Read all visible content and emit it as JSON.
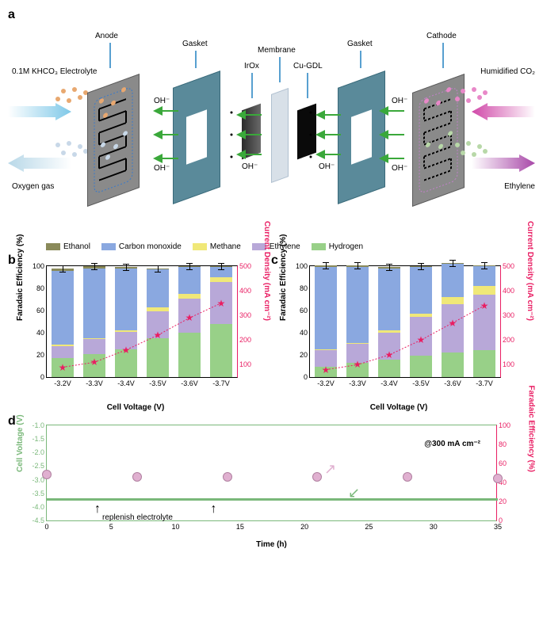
{
  "panelA": {
    "labels": {
      "anode": "Anode",
      "gasket": "Gasket",
      "membrane": "Membrane",
      "irox": "IrOx",
      "cugdl": "Cu-GDL",
      "cathode": "Cathode",
      "electrolyte": "0.1M KHCO₃\nElectrolyte",
      "oxygen": "Oxygen gas",
      "co2": "Humidified CO₂",
      "ethylene": "Ethylene",
      "oh": "OH⁻"
    },
    "colors": {
      "plate": "#8a8a8a",
      "plate_edge": "#5a5a5a",
      "gasket": "#5a8a9a",
      "membrane": "#d8e0e8",
      "irox": "#4a4a4a",
      "cugdl": "#0a0a0a",
      "arrow_in_left": "#7ec8e8",
      "arrow_out_left": "#b8d8e8",
      "arrow_in_right": "#d048a8",
      "arrow_out_right": "#a848a8",
      "oh_arrow": "#3aa83a",
      "pointer": "#2080c0",
      "dots_orange": "#e8a870",
      "dots_lightblue": "#c8d8e8",
      "dots_pink": "#e888c8",
      "dots_green": "#b8d8a8"
    }
  },
  "legend": {
    "items": [
      {
        "label": "Ethanol",
        "color": "#8a8a5a"
      },
      {
        "label": "Carbon monoxide",
        "color": "#8aa8e0"
      },
      {
        "label": "Methane",
        "color": "#f0e878"
      },
      {
        "label": "Ethylene",
        "color": "#b8a8d8"
      },
      {
        "label": "Hydrogen",
        "color": "#98d088"
      }
    ]
  },
  "chartB": {
    "ylabel_left": "Faradaic Efficiency (%)",
    "ylabel_right": "Current Density (mA cm⁻²)",
    "xlabel": "Cell Voltage (V)",
    "ylim_left": [
      0,
      100
    ],
    "ylim_right": [
      50,
      500
    ],
    "yticks_left": [
      0,
      20,
      40,
      60,
      80,
      100
    ],
    "yticks_right": [
      100,
      200,
      300,
      400,
      500
    ],
    "categories": [
      "-3.2V",
      "-3.3V",
      "-3.4V",
      "-3.5V",
      "-3.6V",
      "-3.7V"
    ],
    "stacks": [
      {
        "hydrogen": 17,
        "ethylene": 11,
        "methane": 1,
        "co": 67,
        "ethanol": 2
      },
      {
        "hydrogen": 21,
        "ethylene": 13,
        "methane": 1,
        "co": 63,
        "ethanol": 2
      },
      {
        "hydrogen": 25,
        "ethylene": 16,
        "methane": 1,
        "co": 56,
        "ethanol": 1
      },
      {
        "hydrogen": 35,
        "ethylene": 24,
        "methane": 4,
        "co": 34,
        "ethanol": 1
      },
      {
        "hydrogen": 40,
        "ethylene": 31,
        "methane": 4,
        "co": 24,
        "ethanol": 1
      },
      {
        "hydrogen": 48,
        "ethylene": 38,
        "methane": 4,
        "co": 9,
        "ethanol": 1
      }
    ],
    "current_density": [
      90,
      110,
      160,
      220,
      290,
      350
    ],
    "line_color": "#e91e63"
  },
  "chartC": {
    "ylabel_left": "Faradaic Efficiency (%)",
    "ylabel_right": "Current Density (mA cm⁻²)",
    "xlabel": "Cell Voltage (V)",
    "ylim_left": [
      0,
      100
    ],
    "ylim_right": [
      50,
      500
    ],
    "yticks_left": [
      0,
      20,
      40,
      60,
      80,
      100
    ],
    "yticks_right": [
      100,
      200,
      300,
      400,
      500
    ],
    "categories": [
      "-3.2V",
      "-3.3V",
      "-3.4V",
      "-3.5V",
      "-3.6V",
      "-3.7V"
    ],
    "stacks": [
      {
        "hydrogen": 9,
        "ethylene": 15,
        "methane": 1,
        "co": 74,
        "ethanol": 2
      },
      {
        "hydrogen": 13,
        "ethylene": 17,
        "methane": 1,
        "co": 68,
        "ethanol": 2
      },
      {
        "hydrogen": 16,
        "ethylene": 24,
        "methane": 2,
        "co": 56,
        "ethanol": 1
      },
      {
        "hydrogen": 19,
        "ethylene": 35,
        "methane": 3,
        "co": 42,
        "ethanol": 1
      },
      {
        "hydrogen": 22,
        "ethylene": 44,
        "methane": 6,
        "co": 30,
        "ethanol": 1
      },
      {
        "hydrogen": 24,
        "ethylene": 50,
        "methane": 8,
        "co": 18,
        "ethanol": 1
      }
    ],
    "current_density": [
      80,
      100,
      140,
      200,
      270,
      340
    ],
    "line_color": "#e91e63"
  },
  "chartD": {
    "ylabel_left": "Cell Voltage (V)",
    "ylabel_right": "Faradaic Efficiency (%)",
    "xlabel": "Time (h)",
    "ylim_left": [
      -4.5,
      -1.0
    ],
    "ylim_right": [
      0,
      100
    ],
    "yticks_left": [
      -1.0,
      -1.5,
      -2.0,
      -2.5,
      -3.0,
      -3.5,
      -4.0,
      -4.5
    ],
    "yticks_right": [
      0,
      20,
      40,
      60,
      80,
      100
    ],
    "xlim": [
      0,
      35
    ],
    "xticks": [
      0,
      5,
      10,
      15,
      20,
      25,
      30,
      35
    ],
    "voltage_y": -3.7,
    "fe_points": [
      {
        "x": 0,
        "y": 48
      },
      {
        "x": 7,
        "y": 46
      },
      {
        "x": 14,
        "y": 46
      },
      {
        "x": 21,
        "y": 46
      },
      {
        "x": 28,
        "y": 46
      },
      {
        "x": 35,
        "y": 44
      }
    ],
    "annotation_cond": "@300 mA cm⁻²",
    "annotation_rep": "replenish electrolyte",
    "replenish_x": [
      4,
      13
    ],
    "left_color": "#7ab87a",
    "right_color": "#e91e63",
    "point_color": "#e0b0d0"
  }
}
